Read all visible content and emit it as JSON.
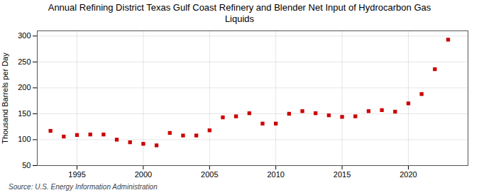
{
  "chart_data": {
    "type": "scatter",
    "title": "Annual Refining District Texas Gulf Coast Refinery and Blender Net Input of Hydrocarbon Gas\nLiquids",
    "ylabel": "Thousand Barrels per Day",
    "source": "Source: U.S. Energy Information Administration",
    "x": [
      1993,
      1994,
      1995,
      1996,
      1997,
      1998,
      1999,
      2000,
      2001,
      2002,
      2003,
      2004,
      2005,
      2006,
      2007,
      2008,
      2009,
      2010,
      2011,
      2012,
      2013,
      2014,
      2015,
      2016,
      2017,
      2018,
      2019,
      2020,
      2021,
      2022,
      2023
    ],
    "values": [
      117,
      106,
      109,
      110,
      110,
      100,
      95,
      92,
      89,
      113,
      108,
      108,
      118,
      143,
      145,
      151,
      131,
      131,
      150,
      155,
      151,
      147,
      144,
      145,
      155,
      157,
      154,
      170,
      188,
      236,
      293
    ],
    "color": "#cc0000",
    "marker": "square",
    "xlim": [
      1992.0,
      2024.5
    ],
    "xticks": [
      1995,
      2000,
      2005,
      2010,
      2015,
      2020
    ],
    "ylim": [
      50,
      310
    ],
    "yticks": [
      50,
      100,
      150,
      200,
      250,
      300
    ],
    "grid": true
  }
}
